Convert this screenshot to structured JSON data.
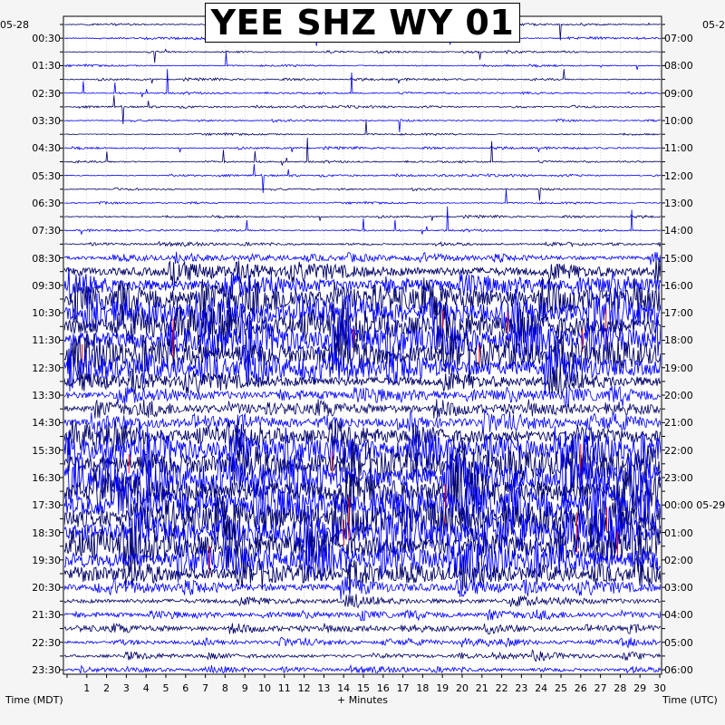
{
  "chart_data": {
    "type": "line",
    "title": "YEE SHZ WY 01",
    "xlabel": "+ Minutes",
    "left_axis_label": "Time (MDT)",
    "right_axis_label": "Time (UTC)",
    "left_corner_label": "05-28",
    "right_corner_label": "05-2",
    "x_ticks": [
      "1",
      "2",
      "3",
      "4",
      "5",
      "6",
      "7",
      "8",
      "9",
      "10",
      "11",
      "12",
      "13",
      "14",
      "15",
      "16",
      "17",
      "18",
      "19",
      "20",
      "21",
      "22",
      "23",
      "24",
      "25",
      "26",
      "27",
      "28",
      "29",
      "30"
    ],
    "left_ticks": [
      "00:30",
      "01:30",
      "02:30",
      "03:30",
      "04:30",
      "05:30",
      "06:30",
      "07:30",
      "08:30",
      "09:30",
      "10:30",
      "11:30",
      "12:30",
      "13:30",
      "14:30",
      "15:30",
      "16:30",
      "17:30",
      "18:30",
      "19:30",
      "20:30",
      "21:30",
      "22:30",
      "23:30"
    ],
    "right_ticks": [
      "07:00",
      "08:00",
      "09:00",
      "10:00",
      "11:00",
      "12:00",
      "13:00",
      "14:00",
      "15:00",
      "16:00",
      "17:00",
      "18:00",
      "19:00",
      "20:00",
      "21:00",
      "22:00",
      "23:00",
      "00:00 05-29",
      "01:00",
      "02:00",
      "03:00",
      "04:00",
      "05:00",
      "06:00"
    ],
    "xlim": [
      0,
      30
    ],
    "traces_count": 48,
    "trace_colors": [
      "#000066",
      "#0000ff"
    ],
    "clip_color": "#ff0000",
    "activity_profile": [
      0.12,
      0.12,
      0.12,
      0.12,
      0.12,
      0.12,
      0.12,
      0.12,
      0.12,
      0.12,
      0.12,
      0.12,
      0.12,
      0.12,
      0.12,
      0.12,
      0.2,
      0.5,
      1.2,
      1.5,
      2.0,
      2.2,
      2.3,
      2.3,
      2.2,
      2.0,
      1.3,
      1.0,
      0.9,
      1.0,
      1.5,
      2.0,
      2.4,
      2.6,
      2.8,
      2.8,
      2.6,
      2.5,
      2.4,
      2.2,
      1.4,
      0.9,
      0.6,
      0.5,
      0.5,
      0.4,
      0.4,
      0.35
    ]
  }
}
